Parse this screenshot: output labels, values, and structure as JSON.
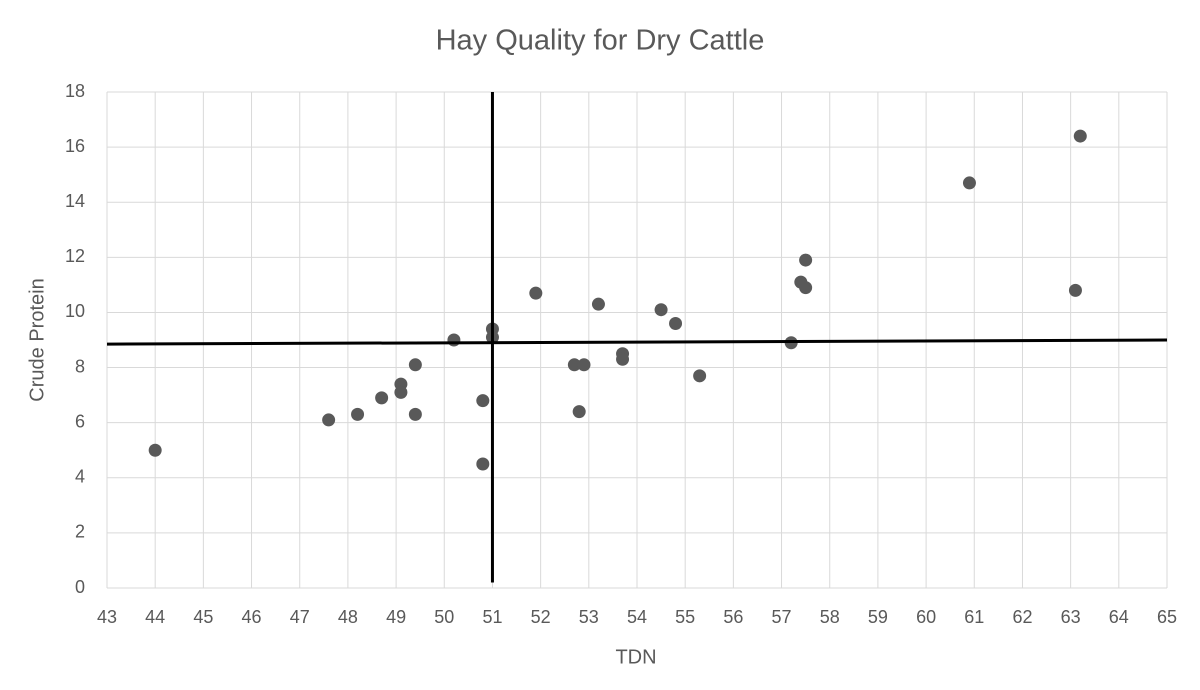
{
  "chart_data": {
    "type": "scatter",
    "title": "Hay Quality for Dry Cattle",
    "x_label": "TDN",
    "y_label": "Crude Protein",
    "x": [
      44.0,
      47.6,
      48.2,
      48.7,
      49.1,
      49.1,
      49.4,
      49.4,
      50.2,
      50.8,
      50.8,
      51.0,
      51.0,
      51.9,
      52.7,
      52.9,
      52.8,
      53.2,
      53.7,
      53.7,
      54.5,
      54.8,
      55.3,
      57.2,
      57.4,
      57.5,
      57.5,
      60.9,
      63.1,
      63.2
    ],
    "values": [
      5.0,
      6.1,
      6.3,
      6.9,
      7.4,
      7.1,
      8.1,
      6.3,
      9.0,
      6.8,
      4.5,
      9.4,
      9.1,
      10.7,
      8.1,
      8.1,
      6.4,
      10.3,
      8.5,
      8.3,
      10.1,
      9.6,
      7.7,
      8.9,
      11.1,
      11.9,
      10.9,
      14.7,
      10.8,
      16.4
    ],
    "color": "#595959",
    "reference_lines": [
      {
        "x": [
          51,
          51
        ],
        "y": [
          0.2,
          18
        ]
      },
      {
        "x": [
          43,
          65
        ],
        "y": [
          8.85,
          9.0
        ]
      }
    ],
    "reference_color": "#000000",
    "xlim": [
      43,
      65
    ],
    "xticks": [
      43,
      44,
      45,
      46,
      47,
      48,
      49,
      50,
      51,
      52,
      53,
      54,
      55,
      56,
      57,
      58,
      59,
      60,
      61,
      62,
      63,
      64,
      65
    ],
    "ylim": [
      0,
      18
    ],
    "yticks": [
      0,
      2,
      4,
      6,
      8,
      10,
      12,
      14,
      16,
      18
    ],
    "grid": true
  }
}
